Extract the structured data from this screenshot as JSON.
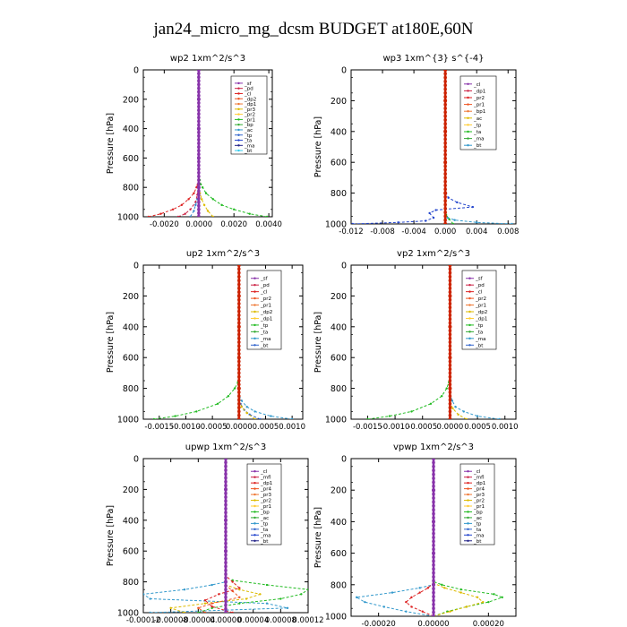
{
  "figure": {
    "title": "jan24_micro_mg_dcsm  BUDGET at180E,60N"
  },
  "chart_data": [
    {
      "type": "line",
      "title": "wp2  1xm^2/s^3",
      "ylabel": "Pressure [hPa]",
      "xlim": [
        -0.0032,
        0.0042
      ],
      "ylim": [
        1000,
        0
      ],
      "xticks": [
        -0.002,
        0.0,
        0.002,
        0.004
      ],
      "xtick_labels": [
        "-0.0020",
        "0.0000",
        "0.0020",
        "0.0040"
      ],
      "yticks": [
        0,
        200,
        400,
        600,
        800,
        1000
      ],
      "legend": [
        "_sf",
        "_pd",
        "_cl",
        "_dp2",
        "_dp1",
        "_pr3",
        "_pr2",
        "_pr1",
        "_bp",
        "_ac",
        "_tp",
        "_ta",
        "_ma",
        "_bt"
      ],
      "series": [
        {
          "name": "_dp1",
          "color": "#dd2222",
          "y": [
            1000,
            980,
            950,
            920,
            880,
            840,
            800,
            780,
            750
          ],
          "x": [
            -0.0029,
            -0.0022,
            -0.0015,
            -0.001,
            -0.0006,
            -0.0003,
            -0.00015,
            -8e-05,
            -3e-05
          ]
        },
        {
          "name": "_bp",
          "color": "#22bb22",
          "y": [
            1000,
            980,
            950,
            920,
            880,
            840,
            800,
            780,
            750
          ],
          "x": [
            0.0039,
            0.0029,
            0.002,
            0.0013,
            0.0008,
            0.0004,
            0.0002,
            0.0001,
            4e-05
          ]
        },
        {
          "name": "_pd",
          "color": "#cc2244",
          "y": [
            1000,
            980,
            950,
            900,
            850,
            800
          ],
          "x": [
            -0.0012,
            -0.0008,
            -0.0005,
            -0.0002,
            -0.0001,
            -3e-05
          ]
        },
        {
          "name": "_pr1",
          "color": "#ddbb00",
          "y": [
            1000,
            960,
            920,
            880,
            840
          ],
          "x": [
            0.0008,
            0.0005,
            0.0003,
            0.00015,
            5e-05
          ]
        },
        {
          "name": "_ac",
          "color": "#3388cc",
          "y": [
            1000,
            960,
            920,
            880
          ],
          "x": [
            -0.0005,
            -0.0003,
            -0.0002,
            -0.0001
          ]
        },
        {
          "name": "_sf",
          "color": "#8833aa",
          "y": [
            0,
            200,
            400,
            600,
            800,
            1000
          ],
          "x": [
            -2e-05,
            -2e-05,
            -2e-05,
            -2e-05,
            -2e-05,
            -2e-05
          ]
        }
      ]
    },
    {
      "type": "line",
      "title": "wp3   1xm^{3} s^{-4}",
      "ylabel": "Pressure [hPa]",
      "xlim": [
        -0.012,
        0.009
      ],
      "ylim": [
        1000,
        0
      ],
      "xticks": [
        -0.012,
        -0.008,
        -0.004,
        0.0,
        0.004,
        0.008
      ],
      "xtick_labels": [
        "-0.012",
        "-0.008",
        "-0.004",
        "0.000",
        "0.004",
        "0.008"
      ],
      "yticks": [
        0,
        200,
        400,
        600,
        800,
        1000
      ],
      "legend": [
        "_cl",
        "_dp1",
        "_pr2",
        "_pr1",
        "_bp1",
        "_ac",
        "_tp",
        "_ta",
        "_ma",
        "_bt"
      ],
      "series": [
        {
          "name": "_ta",
          "color": "#2244cc",
          "y": [
            1000,
            990,
            980,
            960,
            930,
            910,
            890,
            860,
            830,
            800
          ],
          "x": [
            -0.0118,
            -0.006,
            -0.0025,
            -0.0015,
            -0.002,
            -0.0012,
            0.0035,
            0.0015,
            0.0004,
            0.0001
          ]
        },
        {
          "name": "_tp",
          "color": "#3399cc",
          "y": [
            1000,
            990,
            975,
            960
          ],
          "x": [
            0.0085,
            0.004,
            0.0012,
            0.0003
          ]
        },
        {
          "name": "_pr1",
          "color": "#22bb22",
          "y": [
            1000,
            970,
            940
          ],
          "x": [
            0.001,
            0.0005,
            0.0001
          ]
        },
        {
          "name": "_cl",
          "color": "#cc2200",
          "y": [
            0,
            200,
            400,
            600,
            800,
            1000
          ],
          "x": [
            0.0,
            0.0,
            0.0,
            0.0,
            0.0,
            0.0
          ]
        }
      ]
    },
    {
      "type": "line",
      "title": "up2   1xm^2/s^3",
      "ylabel": "Pressure [hPa]",
      "xlim": [
        -0.0018,
        0.0012
      ],
      "ylim": [
        1000,
        0
      ],
      "xticks": [
        -0.0015,
        -0.001,
        -0.0005,
        0.0,
        0.0005,
        0.001
      ],
      "xtick_labels": [
        "-0.0015",
        "-0.0010",
        "-0.0005",
        "0.0000",
        "0.0005",
        "0.0010"
      ],
      "yticks": [
        0,
        200,
        400,
        600,
        800,
        1000
      ],
      "legend": [
        "_sf",
        "_pd",
        "_cl",
        "_pr2",
        "_pr1",
        "_dp2",
        "_dp1",
        "_tp",
        "_ta",
        "_ma",
        "_bt"
      ],
      "series": [
        {
          "name": "_dp2",
          "color": "#22bb22",
          "y": [
            1000,
            980,
            950,
            900,
            850,
            800,
            760
          ],
          "x": [
            -0.0016,
            -0.0012,
            -0.0008,
            -0.0004,
            -0.0002,
            -8e-05,
            -2e-05
          ]
        },
        {
          "name": "_tp",
          "color": "#3399cc",
          "y": [
            1000,
            980,
            950,
            920,
            880,
            840
          ],
          "x": [
            0.001,
            0.0006,
            0.0003,
            0.00015,
            5e-05,
            0.0
          ]
        },
        {
          "name": "_ta",
          "color": "#3366cc",
          "y": [
            1000,
            970,
            940,
            900
          ],
          "x": [
            0.0004,
            0.0002,
            0.0001,
            3e-05
          ]
        },
        {
          "name": "_pr1",
          "color": "#ddbb00",
          "y": [
            1000,
            960,
            920,
            880
          ],
          "x": [
            0.0003,
            0.00015,
            5e-05,
            0.0
          ]
        },
        {
          "name": "_pd",
          "color": "#cc2200",
          "y": [
            0,
            200,
            400,
            600,
            800,
            1000
          ],
          "x": [
            0.0,
            0.0,
            0.0,
            0.0,
            0.0,
            0.0
          ]
        }
      ]
    },
    {
      "type": "line",
      "title": "vp2   1xm^2/s^3",
      "ylabel": "Pressure [hPa]",
      "xlim": [
        -0.0018,
        0.0012
      ],
      "ylim": [
        1000,
        0
      ],
      "xticks": [
        -0.0015,
        -0.001,
        -0.0005,
        0.0,
        0.0005,
        0.001
      ],
      "xtick_labels": [
        "-0.0015",
        "-0.0010",
        "-0.0005",
        "0.0000",
        "0.0005",
        "0.0010"
      ],
      "yticks": [
        0,
        200,
        400,
        600,
        800,
        1000
      ],
      "legend": [
        "_sf",
        "_pd",
        "_cl",
        "_pr2",
        "_pr1",
        "_dp2",
        "_dp1",
        "_tp",
        "_ta",
        "_ma",
        "_bt"
      ],
      "series": [
        {
          "name": "_dp2",
          "color": "#22bb22",
          "y": [
            1000,
            980,
            950,
            900,
            850,
            800,
            760
          ],
          "x": [
            -0.0015,
            -0.0011,
            -0.0007,
            -0.00035,
            -0.00015,
            -6e-05,
            -2e-05
          ]
        },
        {
          "name": "_tp",
          "color": "#3399cc",
          "y": [
            1000,
            980,
            950,
            920,
            880,
            840
          ],
          "x": [
            0.0009,
            0.0005,
            0.00025,
            0.0001,
            4e-05,
            0.0
          ]
        },
        {
          "name": "_pr1",
          "color": "#ddbb00",
          "y": [
            1000,
            970,
            930,
            890
          ],
          "x": [
            0.0003,
            0.00015,
            5e-05,
            0.0
          ]
        },
        {
          "name": "_pd",
          "color": "#cc2200",
          "y": [
            0,
            200,
            400,
            600,
            800,
            1000
          ],
          "x": [
            0.0,
            0.0,
            0.0,
            0.0,
            0.0,
            0.0
          ]
        }
      ]
    },
    {
      "type": "line",
      "title": "upwp   1xm^2/s^3",
      "ylabel": "Pressure [hPa]",
      "xlim": [
        -0.00012,
        0.00012
      ],
      "ylim": [
        1000,
        0
      ],
      "xticks": [
        -0.00012,
        -8e-05,
        -4e-05,
        0.0,
        4e-05,
        8e-05,
        0.00012
      ],
      "xtick_labels": [
        "-0.00012",
        "-0.00008",
        "-0.00004",
        "0.00000",
        "0.00004",
        "0.00008",
        "0.00012"
      ],
      "yticks": [
        0,
        200,
        400,
        600,
        800,
        1000
      ],
      "legend": [
        "_cl",
        "_mfl",
        "_dp1",
        "_pr4",
        "_pr3",
        "_pr2",
        "_pr1",
        "_bp",
        "_ac",
        "_tp",
        "_ta",
        "_ma",
        "_bt"
      ],
      "series": [
        {
          "name": "_tp",
          "color": "#3399cc",
          "y": [
            1000,
            970,
            940,
            910,
            880,
            850,
            820,
            800
          ],
          "x": [
            -0.00011,
            9e-05,
            6e-05,
            -0.00011,
            -0.00012,
            -6e-05,
            -2e-05,
            0.0
          ]
        },
        {
          "name": "_bp",
          "color": "#22bb22",
          "y": [
            1000,
            970,
            940,
            910,
            880,
            850,
            820,
            790
          ],
          "x": [
            -4e-05,
            -2e-05,
            2e-05,
            8e-05,
            0.00011,
            0.00012,
            6e-05,
            1e-05
          ]
        },
        {
          "name": "_pr1",
          "color": "#ddbb00",
          "y": [
            1000,
            970,
            940,
            910,
            880,
            850,
            820
          ],
          "x": [
            -6e-05,
            -8e-05,
            -3e-05,
            3e-05,
            5e-05,
            2e-05,
            0.0
          ]
        },
        {
          "name": "_pr2",
          "color": "#ee5522",
          "y": [
            1000,
            970,
            940,
            900,
            860,
            820
          ],
          "x": [
            -3e-05,
            -4e-05,
            -2e-05,
            2e-05,
            1e-05,
            0.0
          ]
        },
        {
          "name": "_dp1",
          "color": "#dd2222",
          "y": [
            1000,
            960,
            920,
            880,
            840,
            800,
            760
          ],
          "x": [
            1e-05,
            -2e-05,
            -3e-05,
            -1e-05,
            2e-05,
            1e-05,
            0.0
          ]
        },
        {
          "name": "_cl",
          "color": "#8833aa",
          "y": [
            0,
            200,
            400,
            600,
            800,
            1000
          ],
          "x": [
            0.0,
            0.0,
            0.0,
            0.0,
            0.0,
            0.0
          ]
        }
      ]
    },
    {
      "type": "line",
      "title": "vpwp   1xm^2/s^3",
      "ylabel": "Pressure [hPa]",
      "xlim": [
        -0.0003,
        0.0003
      ],
      "ylim": [
        1000,
        0
      ],
      "xticks": [
        -0.0002,
        0.0,
        0.0002
      ],
      "xtick_labels": [
        "-0.00020",
        "0.00000",
        "0.00020"
      ],
      "yticks": [
        0,
        200,
        400,
        600,
        800,
        1000
      ],
      "legend": [
        "_cl",
        "_mfl",
        "_dp1",
        "_pr4",
        "_pr3",
        "_pr2",
        "_pr1",
        "_bp",
        "_ac",
        "_tp",
        "_ta",
        "_ma",
        "_bt"
      ],
      "series": [
        {
          "name": "_tp",
          "color": "#3399cc",
          "y": [
            1000,
            970,
            940,
            910,
            880,
            850,
            820,
            800
          ],
          "x": [
            0.0,
            -0.0001,
            -0.00018,
            -0.00025,
            -0.00028,
            -0.00015,
            -5e-05,
            0.0
          ]
        },
        {
          "name": "_bp",
          "color": "#22bb22",
          "y": [
            1000,
            970,
            940,
            910,
            880,
            860,
            830,
            800,
            780
          ],
          "x": [
            0.0,
            5e-05,
            0.00012,
            0.0002,
            0.00025,
            0.00022,
            0.0001,
            3e-05,
            0.0
          ]
        },
        {
          "name": "_pr1",
          "color": "#ddbb00",
          "y": [
            1000,
            970,
            940,
            910,
            880,
            850,
            820,
            790
          ],
          "x": [
            0.0,
            6e-05,
            0.00012,
            0.00018,
            0.00016,
            0.0001,
            4e-05,
            0.0
          ]
        },
        {
          "name": "_dp1",
          "color": "#dd2222",
          "y": [
            1000,
            970,
            940,
            910,
            880,
            850,
            820,
            790
          ],
          "x": [
            0.0,
            -4e-05,
            -8e-05,
            -0.0001,
            -8e-05,
            -5e-05,
            -2e-05,
            0.0
          ]
        },
        {
          "name": "_cl",
          "color": "#8833aa",
          "y": [
            0,
            200,
            400,
            600,
            800,
            1000
          ],
          "x": [
            0.0,
            0.0,
            0.0,
            0.0,
            0.0,
            0.0
          ]
        }
      ]
    }
  ]
}
